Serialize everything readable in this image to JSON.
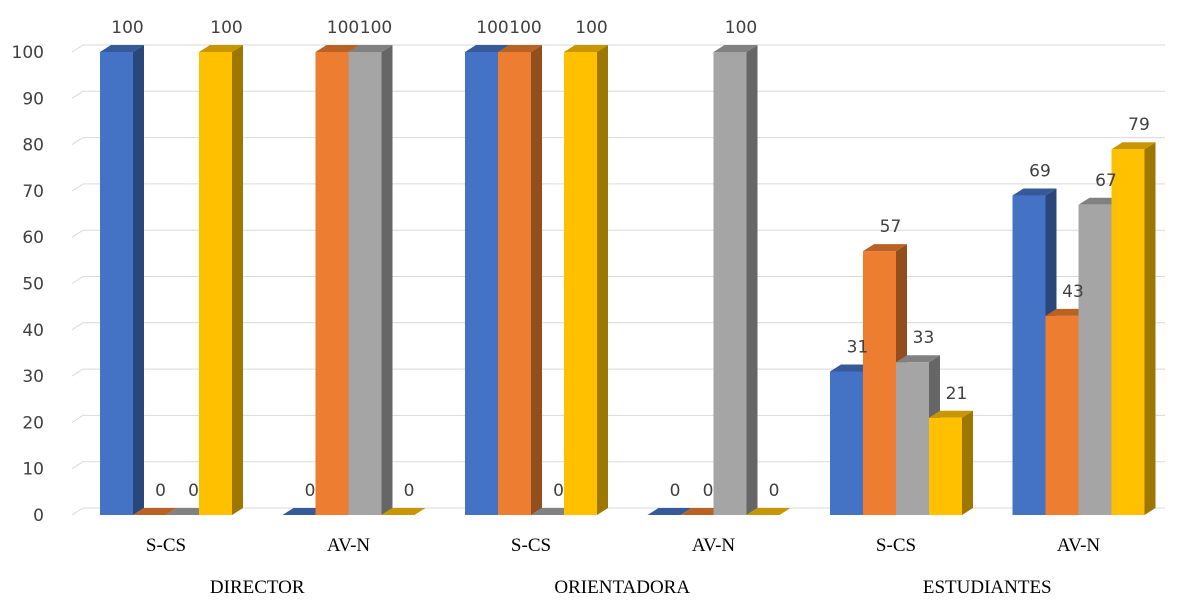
{
  "chart_data": {
    "type": "bar",
    "style": "3d-clustered-column",
    "groups": [
      {
        "label": "DIRECTOR",
        "categories": [
          "S-CS",
          "AV-N"
        ]
      },
      {
        "label": "ORIENTADORA",
        "categories": [
          "S-CS",
          "AV-N"
        ]
      },
      {
        "label": "ESTUDIANTES",
        "categories": [
          "S-CS",
          "AV-N"
        ]
      }
    ],
    "series": [
      {
        "color": "#4472C4",
        "values": [
          100,
          0,
          100,
          0,
          31,
          69
        ]
      },
      {
        "color": "#ED7D31",
        "values": [
          0,
          100,
          100,
          0,
          57,
          43
        ]
      },
      {
        "color": "#A5A5A5",
        "values": [
          0,
          100,
          0,
          100,
          33,
          67
        ]
      },
      {
        "color": "#FFC000",
        "values": [
          100,
          0,
          100,
          0,
          21,
          79
        ]
      }
    ],
    "yticks": [
      0,
      10,
      20,
      30,
      40,
      50,
      60,
      70,
      80,
      90,
      100
    ],
    "ylim": [
      0,
      100
    ],
    "grid": true,
    "legend": "none",
    "data_labels": true
  }
}
